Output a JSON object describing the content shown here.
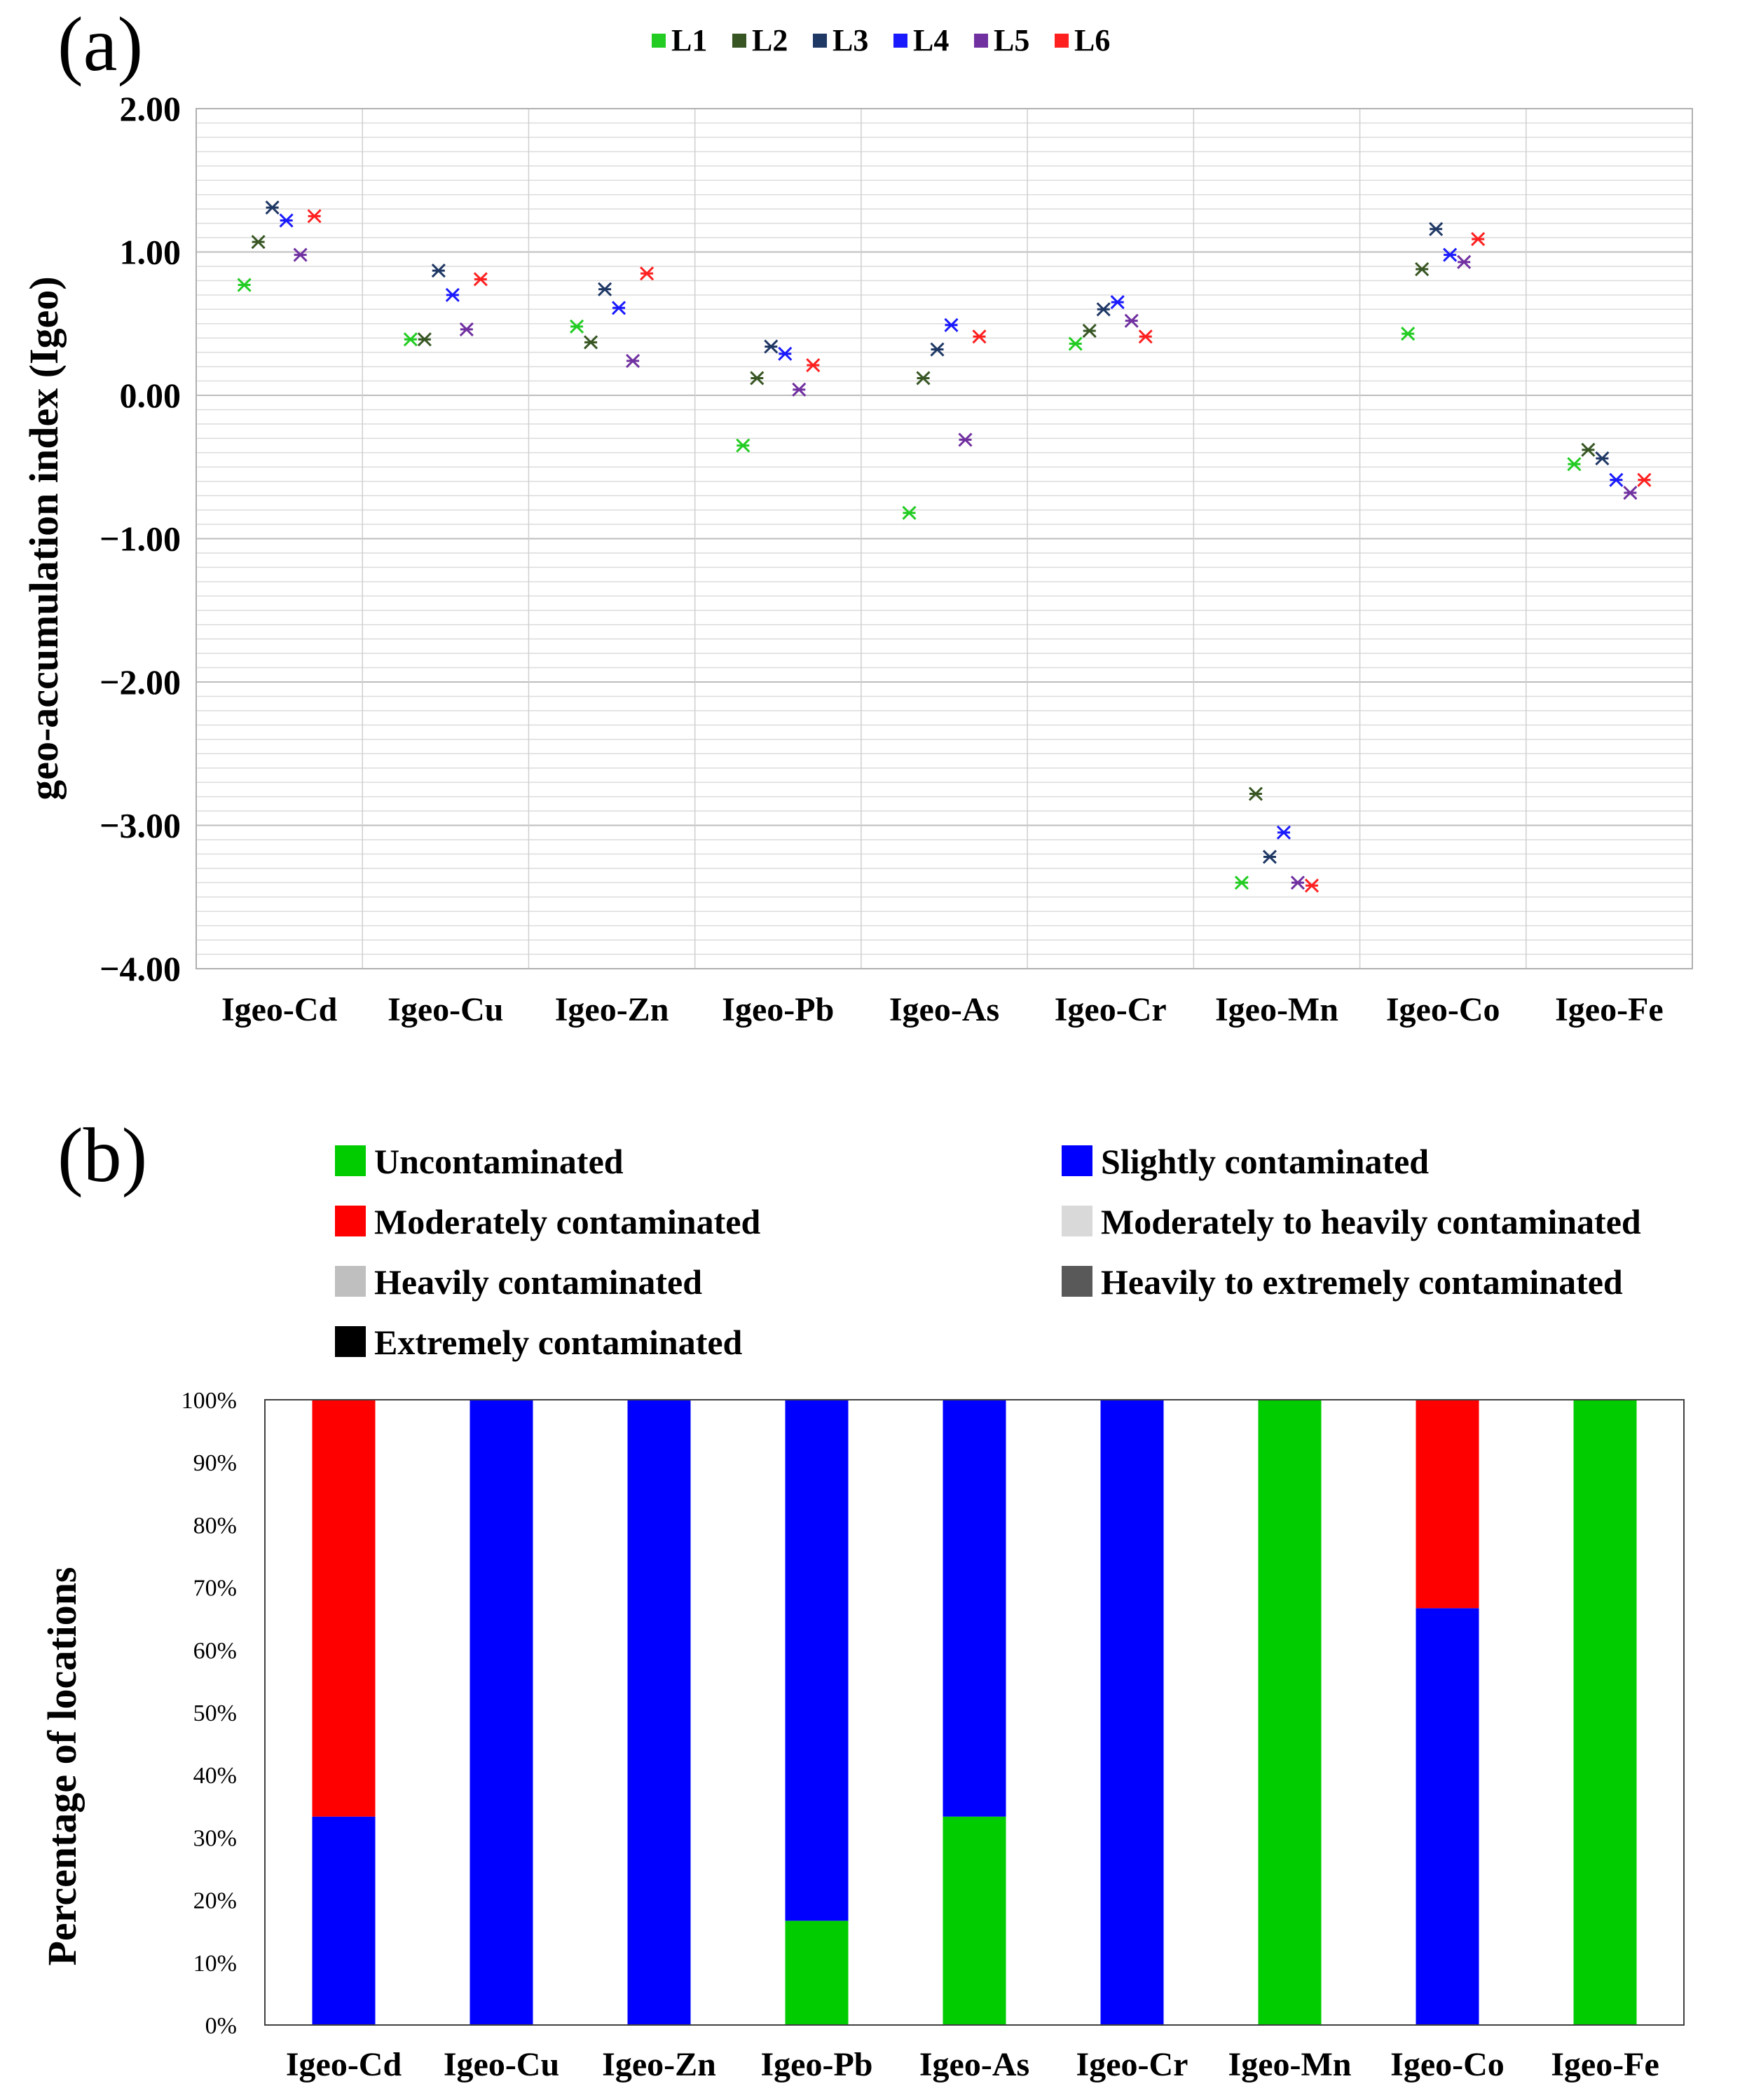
{
  "panel_a_label": "(a)",
  "panel_b_label": "(b)",
  "chart_data": [
    {
      "type": "scatter",
      "panel": "(a)",
      "ylabel": "geo-accumulation index (Igeo)",
      "xlabel": "",
      "ylim": [
        -4.0,
        2.0
      ],
      "y_ticks": [
        "2.00",
        "1.00",
        "0.00",
        "−1.00",
        "−2.00",
        "−3.00",
        "−4.00"
      ],
      "y_tick_values": [
        2,
        1,
        0,
        -1,
        -2,
        -3,
        -4
      ],
      "grid": true,
      "legend_position": "top-center",
      "categories": [
        "Igeo-Cd",
        "Igeo-Cu",
        "Igeo-Zn",
        "Igeo-Pb",
        "Igeo-As",
        "Igeo-Cr",
        "Igeo-Mn",
        "Igeo-Co",
        "Igeo-Fe"
      ],
      "series": [
        {
          "name": "L1",
          "color": "#22cc22",
          "values": [
            0.77,
            0.39,
            0.48,
            -0.35,
            -0.82,
            0.36,
            -3.4,
            0.43,
            -0.48
          ]
        },
        {
          "name": "L2",
          "color": "#375623",
          "values": [
            1.07,
            0.39,
            0.37,
            0.12,
            0.12,
            0.45,
            -2.78,
            0.88,
            -0.38
          ]
        },
        {
          "name": "L3",
          "color": "#1f3864",
          "values": [
            1.31,
            0.87,
            0.74,
            0.34,
            0.32,
            0.6,
            -3.22,
            1.16,
            -0.44
          ]
        },
        {
          "name": "L4",
          "color": "#1a1aff",
          "values": [
            1.22,
            0.7,
            0.61,
            0.29,
            0.49,
            0.65,
            -3.05,
            0.98,
            -0.59
          ]
        },
        {
          "name": "L5",
          "color": "#7030a0",
          "values": [
            0.98,
            0.46,
            0.24,
            0.04,
            -0.31,
            0.52,
            -3.4,
            0.93,
            -0.68
          ]
        },
        {
          "name": "L6",
          "color": "#ff2020",
          "values": [
            1.25,
            0.81,
            0.85,
            0.21,
            0.41,
            0.41,
            -3.42,
            1.09,
            -0.59
          ]
        }
      ]
    },
    {
      "type": "bar",
      "stacked": true,
      "panel": "(b)",
      "ylabel": "Percentage of locations",
      "xlabel": "",
      "ylim": [
        0,
        100
      ],
      "y_ticks": [
        "0%",
        "10%",
        "20%",
        "30%",
        "40%",
        "50%",
        "60%",
        "70%",
        "80%",
        "90%",
        "100%"
      ],
      "y_tick_values": [
        0,
        10,
        20,
        30,
        40,
        50,
        60,
        70,
        80,
        90,
        100
      ],
      "grid": false,
      "legend_position": "top",
      "categories": [
        "Igeo-Cd",
        "Igeo-Cu",
        "Igeo-Zn",
        "Igeo-Pb",
        "Igeo-As",
        "Igeo-Cr",
        "Igeo-Mn",
        "Igeo-Co",
        "Igeo-Fe"
      ],
      "series": [
        {
          "name": "Uncontaminated",
          "color": "#00cc00",
          "values": [
            0,
            0,
            0,
            16.67,
            33.33,
            0,
            100,
            0,
            100
          ]
        },
        {
          "name": "Slightly contaminated",
          "color": "#0000ff",
          "values": [
            33.33,
            100,
            100,
            83.33,
            66.67,
            100,
            0,
            66.67,
            0
          ]
        },
        {
          "name": "Moderately contaminated",
          "color": "#ff0000",
          "values": [
            66.67,
            0,
            0,
            0,
            0,
            0,
            0,
            33.33,
            0
          ]
        },
        {
          "name": "Moderately to  heavily contaminated",
          "color": "#d9d9d9",
          "values": [
            0,
            0,
            0,
            0,
            0,
            0,
            0,
            0,
            0
          ]
        },
        {
          "name": "Heavily contaminated",
          "color": "#bfbfbf",
          "values": [
            0,
            0,
            0,
            0,
            0,
            0,
            0,
            0,
            0
          ]
        },
        {
          "name": "Heavily to extremely contaminated",
          "color": "#595959",
          "values": [
            0,
            0,
            0,
            0,
            0,
            0,
            0,
            0,
            0
          ]
        },
        {
          "name": "Extremely contaminated",
          "color": "#000000",
          "values": [
            0,
            0,
            0,
            0,
            0,
            0,
            0,
            0,
            0
          ]
        }
      ]
    }
  ]
}
